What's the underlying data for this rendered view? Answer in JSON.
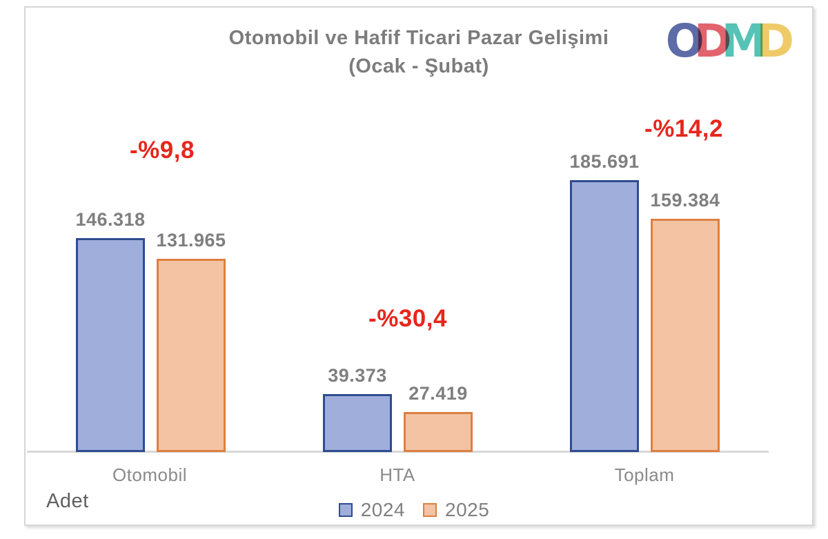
{
  "title": {
    "line1": "Otomobil ve Hafif Ticari Pazar Gelişimi",
    "line2": "(Ocak - Şubat)"
  },
  "logo": {
    "name": "ODMD",
    "letters": [
      {
        "char": "O",
        "color": "#4f5ea0"
      },
      {
        "char": "D",
        "color": "#e05660"
      },
      {
        "char": "M",
        "color": "#48bdb0"
      },
      {
        "char": "D",
        "color": "#eec65b"
      }
    ]
  },
  "chart_data": {
    "type": "bar",
    "title": "Otomobil ve Hafif Ticari Pazar Gelişimi (Ocak - Şubat)",
    "categories": [
      "Otomobil",
      "HTA",
      "Toplam"
    ],
    "series": [
      {
        "name": "2024",
        "values": [
          146318,
          39373,
          185691
        ],
        "fill": "#9faedb",
        "border": "#2e4c8f"
      },
      {
        "name": "2025",
        "values": [
          131965,
          27419,
          159384
        ],
        "fill": "#f3c3a4",
        "border": "#dd8040"
      }
    ],
    "value_labels": [
      [
        "146.318",
        "39.373",
        "185.691"
      ],
      [
        "131.965",
        "27.419",
        "159.384"
      ]
    ],
    "change_labels": [
      "-%9,8",
      "-%30,4",
      "-%14,2"
    ],
    "change_color": "#e7261d",
    "xlabel": "",
    "ylabel": "Adet",
    "ylim": [
      0,
      220000
    ],
    "grid": false,
    "legend_position": "bottom",
    "value_text_color": "#7f7f7f",
    "axis_line_color": "#d7d7d7"
  }
}
